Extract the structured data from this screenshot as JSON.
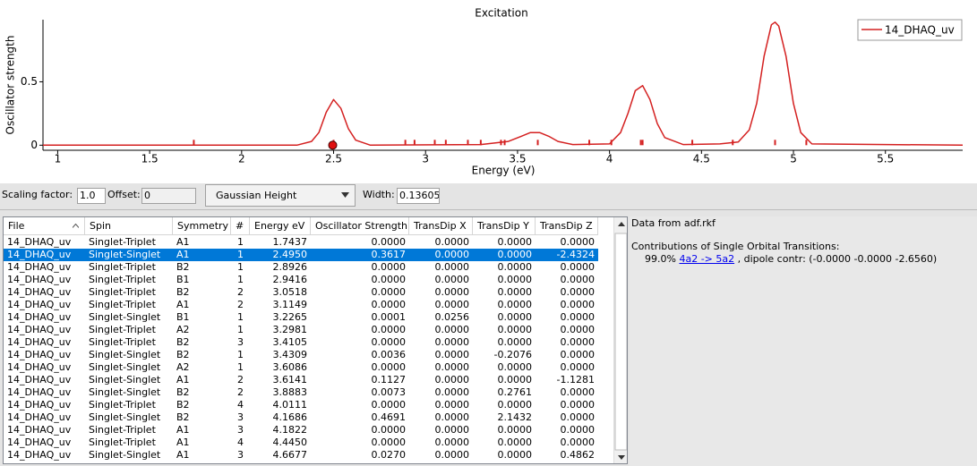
{
  "chart_data": {
    "type": "line",
    "title": "Excitation",
    "xlabel": "Energy (eV)",
    "ylabel": "Oscillator strength",
    "xlim": [
      0.92,
      5.92
    ],
    "ylim": [
      -0.04,
      0.99
    ],
    "xticks": [
      1,
      1.5,
      2,
      2.5,
      3,
      3.5,
      4,
      4.5,
      5,
      5.5
    ],
    "yticks": [
      0,
      0.5
    ],
    "x": [
      0.92,
      2.3,
      2.38,
      2.42,
      2.46,
      2.5,
      2.54,
      2.58,
      2.62,
      2.7,
      3.3,
      3.45,
      3.52,
      3.57,
      3.62,
      3.67,
      3.72,
      3.8,
      4.0,
      4.06,
      4.1,
      4.14,
      4.18,
      4.22,
      4.26,
      4.3,
      4.4,
      4.6,
      4.7,
      4.76,
      4.8,
      4.84,
      4.88,
      4.9,
      4.92,
      4.96,
      5.0,
      5.04,
      5.1,
      5.92
    ],
    "series": [
      {
        "name": "14_DHAQ_uv",
        "color": "#d42020",
        "values": [
          0,
          0,
          0.03,
          0.1,
          0.26,
          0.36,
          0.29,
          0.13,
          0.04,
          0,
          0.005,
          0.03,
          0.07,
          0.1,
          0.1,
          0.07,
          0.03,
          0.005,
          0.01,
          0.1,
          0.25,
          0.43,
          0.47,
          0.36,
          0.17,
          0.06,
          0.005,
          0.01,
          0.025,
          0.12,
          0.33,
          0.7,
          0.95,
          0.97,
          0.94,
          0.7,
          0.33,
          0.1,
          0.01,
          0
        ]
      }
    ],
    "sticks": [
      1.74,
      2.5,
      2.89,
      2.94,
      3.05,
      3.11,
      3.23,
      3.3,
      3.41,
      3.43,
      3.61,
      3.89,
      4.01,
      4.17,
      4.18,
      4.45,
      4.67,
      4.9,
      5.07
    ],
    "highlight": {
      "x": 2.495,
      "y": 0
    },
    "legend": "upper right"
  },
  "toolbar": {
    "scaling_label": "Scaling factor:",
    "scaling_value": "1.0",
    "offset_label": "Offset:",
    "offset_value": "0",
    "mode": "Gaussian Height",
    "width_label": "Width:",
    "width_value": "0.13605"
  },
  "table": {
    "columns": [
      "File",
      "Spin",
      "Symmetry",
      "#",
      "Energy eV",
      "Oscillator Strength",
      "TransDip X",
      "TransDip Y",
      "TransDip Z"
    ],
    "selected_row": 1,
    "rows": [
      [
        "14_DHAQ_uv",
        "Singlet-Triplet",
        "A1",
        "1",
        "1.7437",
        "0.0000",
        "0.0000",
        "0.0000",
        "0.0000"
      ],
      [
        "14_DHAQ_uv",
        "Singlet-Singlet",
        "A1",
        "1",
        "2.4950",
        "0.3617",
        "0.0000",
        "0.0000",
        "-2.4324"
      ],
      [
        "14_DHAQ_uv",
        "Singlet-Triplet",
        "B2",
        "1",
        "2.8926",
        "0.0000",
        "0.0000",
        "0.0000",
        "0.0000"
      ],
      [
        "14_DHAQ_uv",
        "Singlet-Triplet",
        "B1",
        "1",
        "2.9416",
        "0.0000",
        "0.0000",
        "0.0000",
        "0.0000"
      ],
      [
        "14_DHAQ_uv",
        "Singlet-Triplet",
        "B2",
        "2",
        "3.0518",
        "0.0000",
        "0.0000",
        "0.0000",
        "0.0000"
      ],
      [
        "14_DHAQ_uv",
        "Singlet-Triplet",
        "A1",
        "2",
        "3.1149",
        "0.0000",
        "0.0000",
        "0.0000",
        "0.0000"
      ],
      [
        "14_DHAQ_uv",
        "Singlet-Singlet",
        "B1",
        "1",
        "3.2265",
        "0.0001",
        "0.0256",
        "0.0000",
        "0.0000"
      ],
      [
        "14_DHAQ_uv",
        "Singlet-Triplet",
        "A2",
        "1",
        "3.2981",
        "0.0000",
        "0.0000",
        "0.0000",
        "0.0000"
      ],
      [
        "14_DHAQ_uv",
        "Singlet-Triplet",
        "B2",
        "3",
        "3.4105",
        "0.0000",
        "0.0000",
        "0.0000",
        "0.0000"
      ],
      [
        "14_DHAQ_uv",
        "Singlet-Singlet",
        "B2",
        "1",
        "3.4309",
        "0.0036",
        "0.0000",
        "-0.2076",
        "0.0000"
      ],
      [
        "14_DHAQ_uv",
        "Singlet-Singlet",
        "A2",
        "1",
        "3.6086",
        "0.0000",
        "0.0000",
        "0.0000",
        "0.0000"
      ],
      [
        "14_DHAQ_uv",
        "Singlet-Singlet",
        "A1",
        "2",
        "3.6141",
        "0.1127",
        "0.0000",
        "0.0000",
        "-1.1281"
      ],
      [
        "14_DHAQ_uv",
        "Singlet-Singlet",
        "B2",
        "2",
        "3.8883",
        "0.0073",
        "0.0000",
        "0.2761",
        "0.0000"
      ],
      [
        "14_DHAQ_uv",
        "Singlet-Triplet",
        "B2",
        "4",
        "4.0111",
        "0.0000",
        "0.0000",
        "0.0000",
        "0.0000"
      ],
      [
        "14_DHAQ_uv",
        "Singlet-Singlet",
        "B2",
        "3",
        "4.1686",
        "0.4691",
        "0.0000",
        "2.1432",
        "0.0000"
      ],
      [
        "14_DHAQ_uv",
        "Singlet-Triplet",
        "A1",
        "3",
        "4.1822",
        "0.0000",
        "0.0000",
        "0.0000",
        "0.0000"
      ],
      [
        "14_DHAQ_uv",
        "Singlet-Triplet",
        "A1",
        "4",
        "4.4450",
        "0.0000",
        "0.0000",
        "0.0000",
        "0.0000"
      ],
      [
        "14_DHAQ_uv",
        "Singlet-Singlet",
        "A1",
        "3",
        "4.6677",
        "0.0270",
        "0.0000",
        "0.0000",
        "0.4862"
      ]
    ]
  },
  "details": {
    "source": "Data from adf.rkf",
    "heading": "Contributions of Single Orbital Transitions:",
    "percent": "99.0%",
    "link": "4a2 -> 5a2",
    "rest": ", dipole contr: (-0.0000 -0.0000 -2.6560)"
  }
}
